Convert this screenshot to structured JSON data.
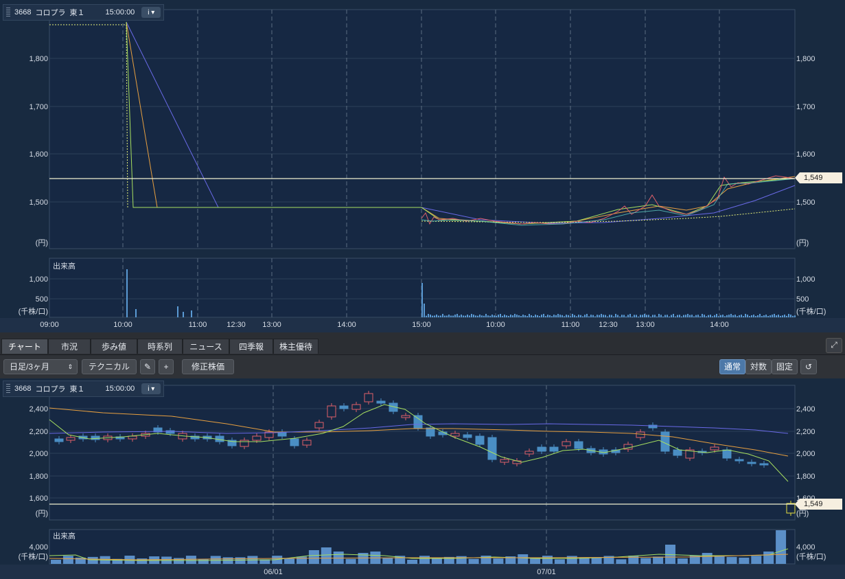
{
  "quote": {
    "code": "3668",
    "name": "コロプラ",
    "market": "東１",
    "time": "15:00:00",
    "info_label": "i ▾"
  },
  "last_price_label": "1,549",
  "unit_price": "(円)",
  "unit_volume": "(千株/口)",
  "volume_title": "出来高",
  "intraday": {
    "price_ticks": [
      "1,800",
      "1,700",
      "1,600",
      "1,500"
    ],
    "volume_ticks": [
      "1,000",
      "500"
    ],
    "time_labels": [
      "09:00",
      "10:00",
      "11:00",
      "12:30",
      "13:00",
      "14:00",
      "15:00",
      "10:00",
      "11:00",
      "12:30",
      "13:00",
      "14:00"
    ]
  },
  "tabs": [
    "チャート",
    "市況",
    "歩み値",
    "時系列",
    "ニュース",
    "四季報",
    "株主優待"
  ],
  "toolbar": {
    "period": "日足/3ヶ月",
    "technical": "テクニカル",
    "pen_icon": "✎",
    "cross_icon": "+",
    "adjust": "修正株価",
    "mode_normal": "通常",
    "mode_log": "対数",
    "mode_fixed": "固定",
    "reset_icon": "↺"
  },
  "daily": {
    "price_ticks": [
      "2,400",
      "2,200",
      "2,000",
      "1,800",
      "1,600"
    ],
    "volume_ticks": [
      "4,000"
    ],
    "date_labels": [
      "06/01",
      "07/01"
    ]
  },
  "colors": {
    "bg": "#182a40",
    "up": "#e0606a",
    "down": "#4a8ec4",
    "ma_short": "#a8e060",
    "ma_mid": "#e8a040",
    "ma_long": "#6a6ae8",
    "last": "#f0f0d0"
  }
}
